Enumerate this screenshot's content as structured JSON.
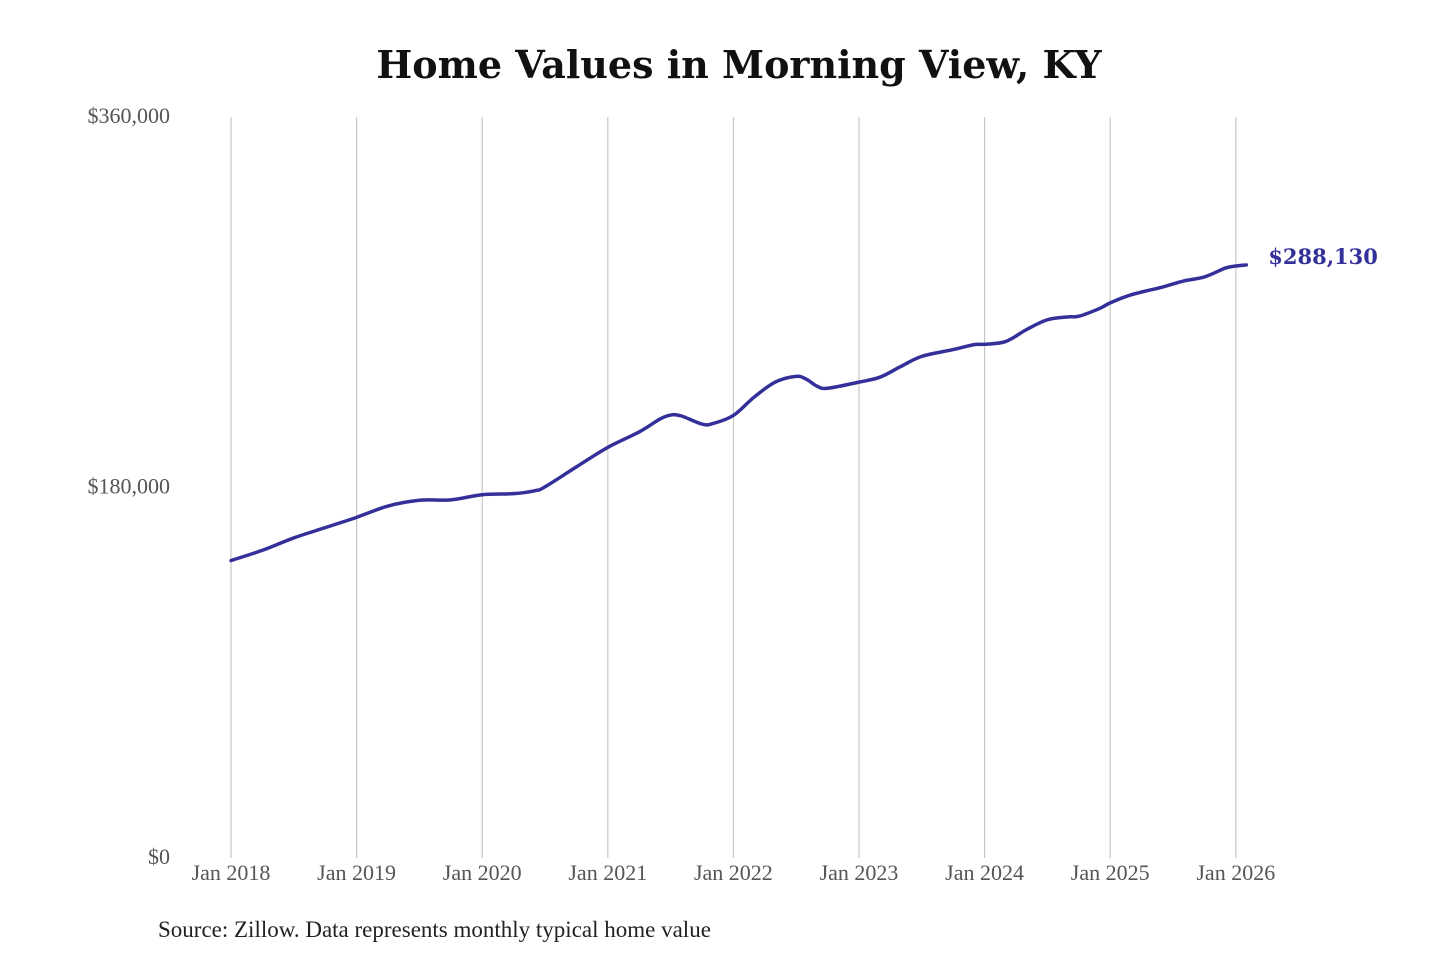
{
  "chart_data": {
    "type": "line",
    "title": "Home Values in Morning View, KY",
    "xlabel": "",
    "ylabel": "",
    "ylim": [
      0,
      360000
    ],
    "y_ticks": [
      {
        "value": 0,
        "label": "$0"
      },
      {
        "value": 180000,
        "label": "$180,000"
      },
      {
        "value": 360000,
        "label": "$360,000"
      }
    ],
    "x_ticks": [
      {
        "value": "2018-01",
        "label": "Jan 2018"
      },
      {
        "value": "2019-01",
        "label": "Jan 2019"
      },
      {
        "value": "2020-01",
        "label": "Jan 2020"
      },
      {
        "value": "2021-01",
        "label": "Jan 2021"
      },
      {
        "value": "2022-01",
        "label": "Jan 2022"
      },
      {
        "value": "2023-01",
        "label": "Jan 2023"
      },
      {
        "value": "2024-01",
        "label": "Jan 2024"
      },
      {
        "value": "2025-01",
        "label": "Jan 2025"
      },
      {
        "value": "2026-01",
        "label": "Jan 2026"
      }
    ],
    "grid": "vertical",
    "series": [
      {
        "name": "Typical home value",
        "color": "#34309a",
        "x": [
          "2018-01",
          "2018-04",
          "2018-07",
          "2018-10",
          "2019-01",
          "2019-04",
          "2019-07",
          "2019-10",
          "2020-01",
          "2020-04",
          "2020-06",
          "2020-07",
          "2020-10",
          "2021-01",
          "2021-04",
          "2021-06",
          "2021-07",
          "2021-08",
          "2021-10",
          "2021-11",
          "2022-01",
          "2022-03",
          "2022-05",
          "2022-07",
          "2022-08",
          "2022-09",
          "2022-10",
          "2023-01",
          "2023-03",
          "2023-05",
          "2023-07",
          "2023-10",
          "2023-12",
          "2024-01",
          "2024-03",
          "2024-05",
          "2024-07",
          "2024-09",
          "2024-10",
          "2024-12",
          "2025-01",
          "2025-03",
          "2025-06",
          "2025-08",
          "2025-10",
          "2025-12",
          "2026-01",
          "2026-02"
        ],
        "values": [
          144500,
          149500,
          155500,
          160500,
          165500,
          171000,
          173800,
          174000,
          176500,
          177000,
          178400,
          180300,
          190000,
          199500,
          207000,
          213300,
          215200,
          214800,
          210800,
          211000,
          215000,
          224000,
          231200,
          234000,
          232500,
          229200,
          228200,
          231200,
          233600,
          238800,
          243700,
          247000,
          249400,
          249600,
          250900,
          256700,
          261500,
          262900,
          263200,
          267000,
          269700,
          273600,
          277400,
          280300,
          282300,
          286600,
          287600,
          288130
        ]
      }
    ],
    "end_label": "$288,130",
    "source": "Source: Zillow. Data represents monthly typical home value"
  }
}
